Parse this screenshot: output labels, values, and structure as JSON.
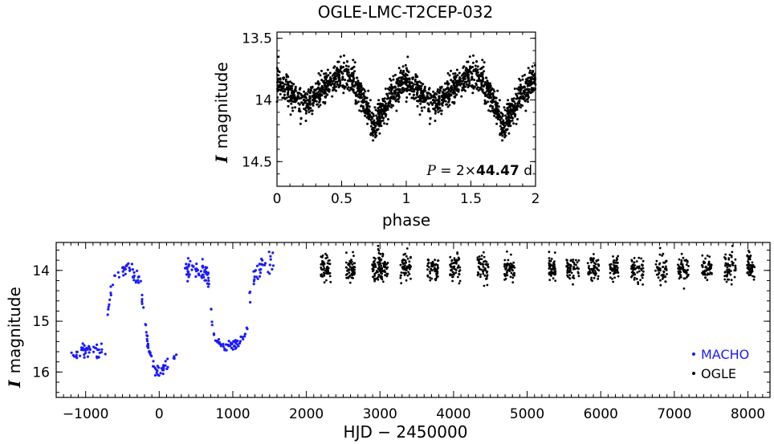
{
  "chart_data": [
    {
      "id": "phased",
      "type": "scatter",
      "title": "OGLE-LMC-T2CEP-032",
      "xlabel": "phase",
      "ylabel_symbol": "I",
      "ylabel_word": "magnitude",
      "xlim": [
        0,
        2
      ],
      "ylim": [
        14.7,
        13.45
      ],
      "inverted_y": true,
      "xticks": [
        0,
        0.5,
        1,
        1.5,
        2
      ],
      "xtick_labels": [
        "0",
        "0.5",
        "1",
        "1.5",
        "2"
      ],
      "yticks": [
        13.5,
        14,
        14.5
      ],
      "ytick_labels": [
        "13.5",
        "14",
        "14.5"
      ],
      "annotation": {
        "symbol": "P",
        "eq": " = 2×",
        "value": "44.47",
        "unit": " d"
      },
      "model": {
        "description_points_phase": [
          0,
          0.1,
          0.2,
          0.25,
          0.3,
          0.4,
          0.5,
          0.55,
          0.6,
          0.7,
          0.75,
          0.8,
          0.9,
          1.0
        ],
        "mag": [
          13.85,
          13.93,
          14.02,
          14.0,
          13.95,
          13.86,
          13.79,
          13.8,
          13.86,
          14.08,
          14.22,
          14.12,
          13.94,
          13.84
        ]
      },
      "point_count": 950,
      "scatter_mag": 0.06,
      "color": "#000000"
    },
    {
      "id": "timeseries",
      "type": "scatter",
      "xlabel": "HJD − 2450000",
      "ylabel_symbol": "I",
      "ylabel_word": "magnitude",
      "xlim": [
        -1400,
        8300
      ],
      "ylim": [
        16.5,
        13.45
      ],
      "inverted_y": true,
      "xticks": [
        -1000,
        0,
        1000,
        2000,
        3000,
        4000,
        5000,
        6000,
        7000,
        8000
      ],
      "xtick_labels": [
        "−1000",
        "0",
        "1000",
        "2000",
        "3000",
        "4000",
        "5000",
        "6000",
        "7000",
        "8000"
      ],
      "yticks": [
        14,
        15,
        16
      ],
      "ytick_labels": [
        "14",
        "15",
        "16"
      ],
      "series": [
        {
          "name": "MACHO",
          "color": "#1a1aff",
          "segments": [
            {
              "t": [
                -1200,
                -1000,
                -800,
                -720
              ],
              "mag": [
                15.7,
                15.55,
                15.65,
                15.55
              ],
              "n": 45,
              "scatter": 0.12
            },
            {
              "t": [
                -700,
                -620,
                -550,
                -400,
                -300,
                -250
              ],
              "mag": [
                14.8,
                14.05,
                14.0,
                13.95,
                14.1,
                14.2
              ],
              "n": 45,
              "scatter": 0.15
            },
            {
              "t": [
                -250,
                -150,
                -50,
                0,
                100,
                200,
                260
              ],
              "mag": [
                14.4,
                15.5,
                15.95,
                16.0,
                15.85,
                15.7,
                15.5
              ],
              "n": 55,
              "scatter": 0.1
            },
            {
              "t": [
                350,
                450,
                600,
                680
              ],
              "mag": [
                14.0,
                13.95,
                14.0,
                14.2
              ],
              "n": 60,
              "scatter": 0.18
            },
            {
              "t": [
                680,
                750,
                900,
                1100,
                1200
              ],
              "mag": [
                14.5,
                15.35,
                15.5,
                15.4,
                15.15
              ],
              "n": 55,
              "scatter": 0.08
            },
            {
              "t": [
                1220,
                1300,
                1400,
                1560
              ],
              "mag": [
                14.6,
                14.1,
                13.9,
                13.85
              ],
              "n": 35,
              "scatter": 0.15
            }
          ]
        },
        {
          "name": "OGLE",
          "color": "#000000",
          "seasons": [
            2260,
            2600,
            2960,
            3040,
            3350,
            3720,
            4020,
            4400,
            4760,
            5340,
            5620,
            5900,
            6180,
            6500,
            6820,
            7120,
            7440,
            7760,
            8040
          ],
          "widths": [
            140,
            120,
            130,
            140,
            150,
            150,
            140,
            150,
            140,
            90,
            170,
            150,
            120,
            170,
            160,
            150,
            140,
            160,
            100
          ],
          "mean_mag": 13.95,
          "scatter_mag": 0.13,
          "points_per_season": 55
        }
      ],
      "legend": {
        "position": "bottom-right",
        "entries": [
          "MACHO",
          "OGLE"
        ]
      }
    }
  ]
}
